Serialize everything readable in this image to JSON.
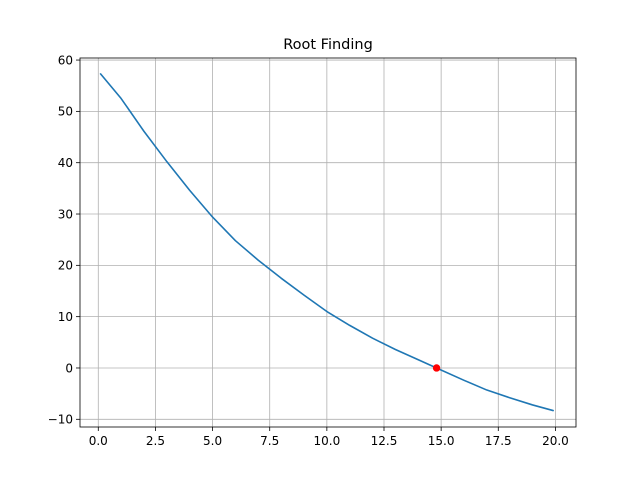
{
  "chart_data": {
    "type": "line",
    "title": "Root Finding",
    "xlabel": "",
    "ylabel": "",
    "xlim": [
      -0.8,
      20.9
    ],
    "ylim": [
      -11.5,
      60.4
    ],
    "grid": true,
    "xticks": [
      0.0,
      2.5,
      5.0,
      7.5,
      10.0,
      12.5,
      15.0,
      17.5,
      20.0
    ],
    "xtick_labels": [
      "0.0",
      "2.5",
      "5.0",
      "7.5",
      "10.0",
      "12.5",
      "15.0",
      "17.5",
      "20.0"
    ],
    "yticks": [
      -10,
      0,
      10,
      20,
      30,
      40,
      50,
      60
    ],
    "ytick_labels": [
      "−10",
      "0",
      "10",
      "20",
      "30",
      "40",
      "50",
      "60"
    ],
    "series": [
      {
        "color": "#1f77b4",
        "x": [
          0.1,
          1.0,
          2.0,
          3.0,
          4.0,
          5.0,
          6.0,
          7.0,
          8.0,
          9.0,
          10.0,
          11.0,
          12.0,
          13.0,
          14.0,
          14.8,
          16.0,
          17.0,
          18.0,
          19.0,
          19.9
        ],
        "y": [
          57.3,
          52.5,
          46.1,
          40.2,
          34.6,
          29.4,
          24.8,
          21.0,
          17.5,
          14.2,
          11.0,
          8.3,
          5.8,
          3.6,
          1.6,
          0.0,
          -2.4,
          -4.3,
          -5.8,
          -7.2,
          -8.3
        ]
      }
    ],
    "markers": [
      {
        "color": "#ff0000",
        "x": 14.8,
        "y": 0.0
      }
    ]
  }
}
